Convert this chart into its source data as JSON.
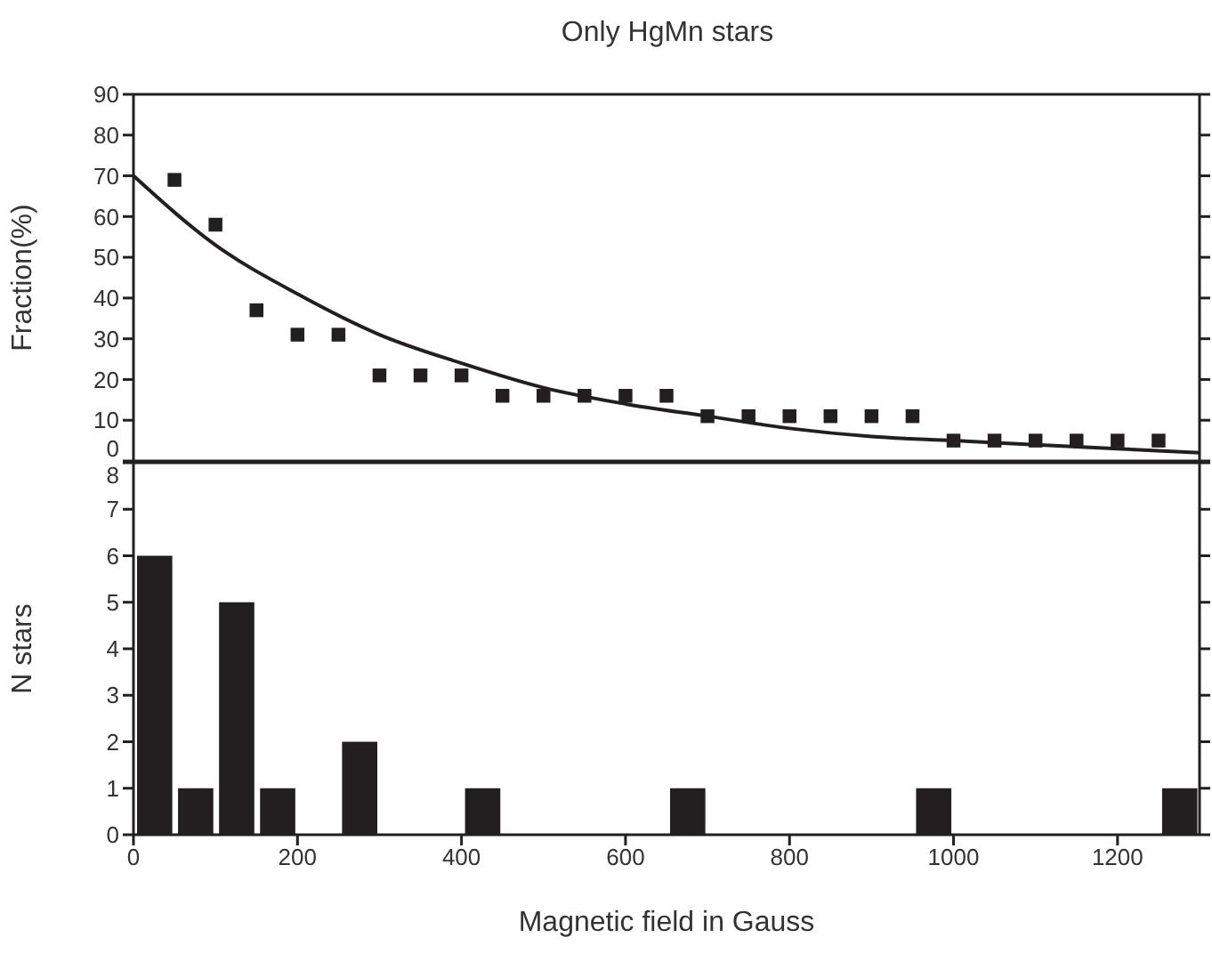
{
  "chart_data": [
    {
      "type": "scatter",
      "title": "Only HgMn stars",
      "ylabel": "Fraction(%)",
      "xlim": [
        0,
        1300
      ],
      "xticks": [
        0,
        200,
        400,
        600,
        800,
        1000,
        1200
      ],
      "ylim": [
        0,
        90
      ],
      "yticks": [
        0,
        10,
        20,
        30,
        40,
        50,
        60,
        70,
        80,
        90
      ],
      "tick_labels": "y",
      "grid": false,
      "series": [
        {
          "type": "scatter",
          "marker": "square",
          "color": "#231f20",
          "x": [
            50,
            100,
            150,
            200,
            250,
            300,
            350,
            400,
            450,
            500,
            550,
            600,
            650,
            700,
            750,
            800,
            850,
            900,
            950,
            1000,
            1050,
            1100,
            1150,
            1200,
            1250
          ],
          "values": [
            69,
            58,
            37,
            31,
            31,
            21,
            21,
            21,
            16,
            16,
            16,
            16,
            16,
            11,
            11,
            11,
            11,
            11,
            11,
            5,
            5,
            5,
            5,
            5,
            5
          ]
        },
        {
          "type": "line",
          "color": "#231f20",
          "x": [
            0,
            100,
            200,
            300,
            400,
            500,
            600,
            700,
            800,
            900,
            1000,
            1100,
            1200,
            1300
          ],
          "values": [
            70,
            53,
            41,
            31,
            24,
            18,
            14,
            11,
            8,
            6,
            5,
            4,
            3,
            2
          ]
        }
      ]
    },
    {
      "type": "histogram",
      "xlabel": "Magnetic field in Gauss",
      "ylabel": "N stars",
      "xlim": [
        0,
        1300
      ],
      "xticks": [
        0,
        200,
        400,
        600,
        800,
        1000,
        1200
      ],
      "ylim": [
        0,
        8
      ],
      "yticks": [
        0,
        1,
        2,
        3,
        4,
        5,
        6,
        7,
        8
      ],
      "color": "#231f20",
      "grid": false,
      "bins": [
        0,
        50,
        100,
        150,
        200,
        250,
        300,
        350,
        400,
        450,
        500,
        550,
        600,
        650,
        700,
        750,
        800,
        850,
        900,
        950,
        1000,
        1050,
        1100,
        1150,
        1200,
        1250,
        1300
      ],
      "values": [
        6,
        1,
        5,
        1,
        0,
        2,
        0,
        0,
        1,
        0,
        0,
        0,
        0,
        1,
        0,
        0,
        0,
        0,
        0,
        1,
        0,
        0,
        0,
        0,
        0,
        1
      ]
    }
  ]
}
